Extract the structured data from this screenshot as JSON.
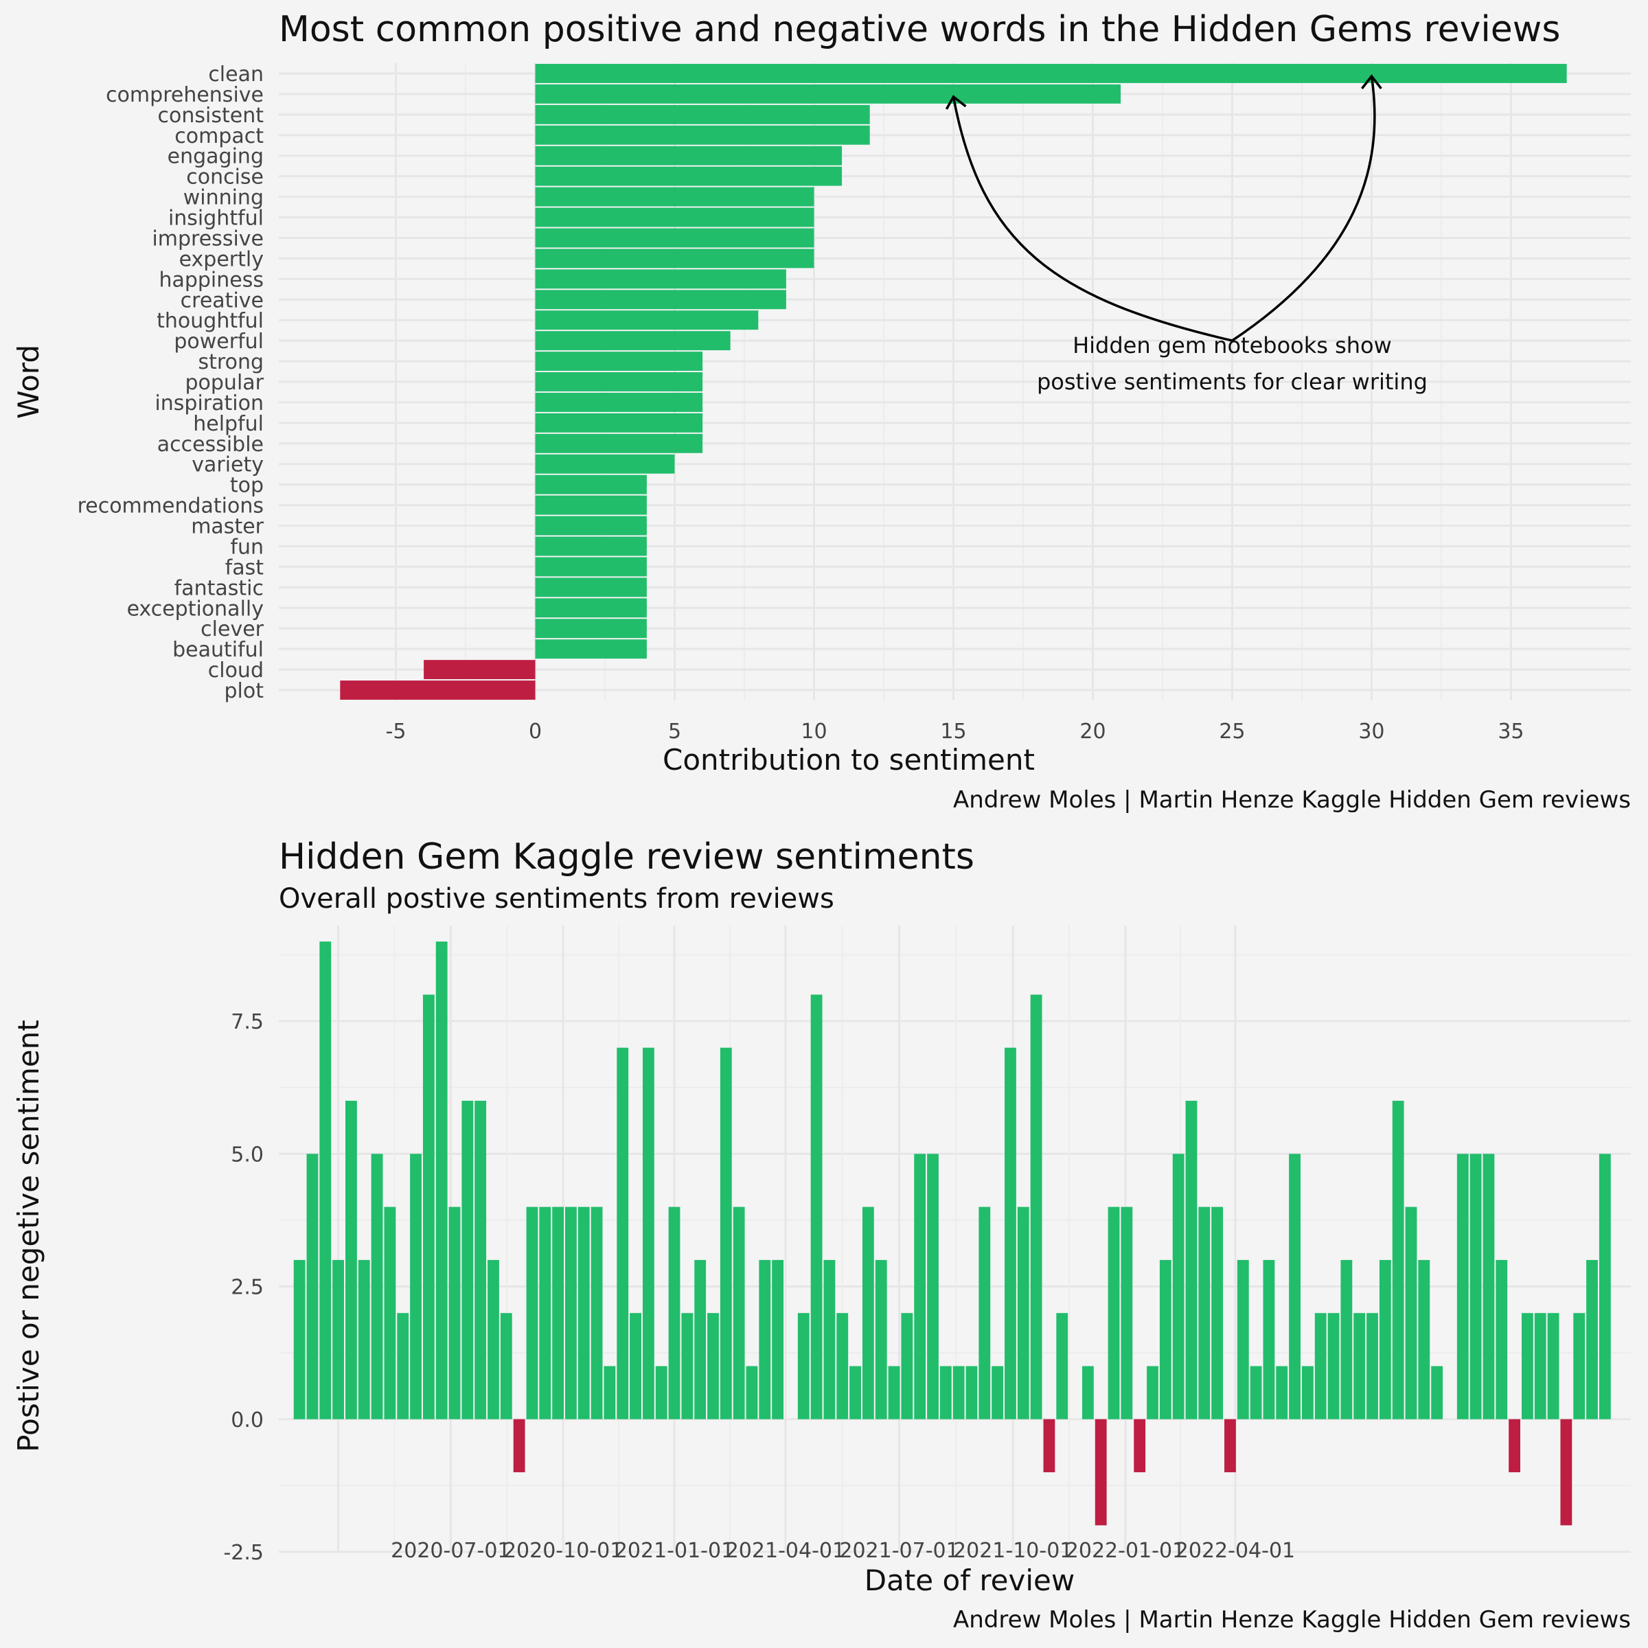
{
  "colors": {
    "background": "#f4f4f4",
    "positive": "#21bd6b",
    "negative": "#be1e42",
    "grid_major": "#e6e6e6",
    "grid_minor": "#ececec",
    "text": "#111111",
    "tick_text": "#444444"
  },
  "chart_data": [
    {
      "type": "bar",
      "orientation": "horizontal",
      "title": "Most common positive and negative words in the Hidden Gems reviews",
      "xlabel": "Contribution to sentiment",
      "ylabel": "Word",
      "caption": "Andrew Moles | Martin Henze Kaggle Hidden Gem reviews",
      "xlim": [
        -9.2,
        39.3
      ],
      "xticks": [
        -5,
        0,
        5,
        10,
        15,
        20,
        25,
        30,
        35
      ],
      "xtick_labels": [
        "-5",
        "0",
        "5",
        "10",
        "15",
        "20",
        "25",
        "30",
        "35"
      ],
      "grid": true,
      "categories": [
        "clean",
        "comprehensive",
        "consistent",
        "compact",
        "engaging",
        "concise",
        "winning",
        "insightful",
        "impressive",
        "expertly",
        "happiness",
        "creative",
        "thoughtful",
        "powerful",
        "strong",
        "popular",
        "inspiration",
        "helpful",
        "accessible",
        "variety",
        "top",
        "recommendations",
        "master",
        "fun",
        "fast",
        "fantastic",
        "exceptionally",
        "clever",
        "beautiful",
        "cloud",
        "plot"
      ],
      "values": [
        37,
        21,
        12,
        12,
        11,
        11,
        10,
        10,
        10,
        10,
        9,
        9,
        8,
        7,
        6,
        6,
        6,
        6,
        6,
        5,
        4,
        4,
        4,
        4,
        4,
        4,
        4,
        4,
        4,
        -4,
        -7
      ],
      "annotation": {
        "lines": [
          "Hidden gem notebooks show",
          "postive sentiments for clear writing"
        ],
        "anchor": [
          25,
          13
        ],
        "arrows_to": [
          [
            15,
            29.2
          ],
          [
            30,
            30.2
          ]
        ]
      }
    },
    {
      "type": "bar",
      "title": "Hidden Gem Kaggle review sentiments",
      "subtitle": "Overall postive sentiments from reviews",
      "xlabel": "Date of review",
      "ylabel": "Postive or negetive sentiment",
      "caption": "Andrew Moles | Martin Henze Kaggle Hidden Gem reviews",
      "x_is_time_index": true,
      "xlim": [
        -1.6,
        103.0
      ],
      "xticks": [
        3,
        11.7,
        20.4,
        29,
        37.6,
        46.4,
        55.2,
        63.9,
        72.4
      ],
      "xtick_labels": [
        "2020-07-01",
        "2020-10-01",
        "2021-01-01",
        "2021-04-01",
        "2021-07-01",
        "2021-10-01",
        "2022-01-01",
        "2022-04-01"
      ],
      "xtick_label_index": [
        1,
        2,
        3,
        4,
        5,
        6,
        7,
        8
      ],
      "ylim": [
        -2.5,
        9.3
      ],
      "yticks": [
        -2.5,
        0,
        2.5,
        5,
        7.5
      ],
      "ytick_labels": [
        "-2.5",
        "0.0",
        "2.5",
        "5.0",
        "7.5"
      ],
      "grid": true,
      "values": [
        3,
        5,
        9,
        3,
        6,
        3,
        5,
        4,
        2,
        5,
        8,
        9,
        4,
        6,
        6,
        3,
        2,
        -1,
        4,
        4,
        4,
        4,
        4,
        4,
        1,
        7,
        2,
        7,
        1,
        4,
        2,
        3,
        2,
        7,
        4,
        1,
        3,
        3,
        null,
        2,
        8,
        3,
        2,
        1,
        4,
        3,
        1,
        2,
        5,
        5,
        1,
        1,
        1,
        4,
        1,
        7,
        4,
        8,
        -1,
        2,
        null,
        1,
        -2,
        4,
        4,
        -1,
        1,
        3,
        5,
        6,
        4,
        4,
        -1,
        3,
        1,
        3,
        1,
        5,
        1,
        2,
        2,
        3,
        2,
        2,
        3,
        6,
        4,
        3,
        1,
        null,
        5,
        5,
        5,
        3,
        -1,
        2,
        2,
        2,
        -2,
        2,
        3,
        5
      ]
    }
  ]
}
